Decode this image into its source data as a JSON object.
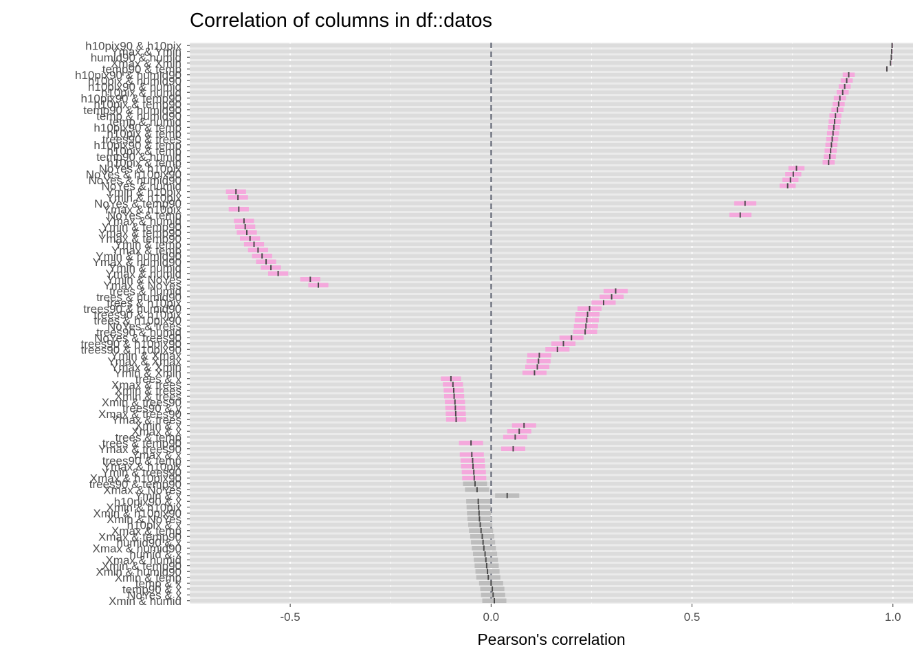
{
  "chart_data": {
    "type": "interval",
    "title": "Correlation of columns in df::datos",
    "xlabel": "Pearson's correlation",
    "ylabel": "",
    "xlim": [
      -0.75,
      1.05
    ],
    "x_ticks": [
      -0.5,
      0.0,
      0.5,
      1.0
    ],
    "x_tick_labels": [
      "-0.5",
      "0.0",
      "0.5",
      "1.0"
    ],
    "reference_line": 0,
    "grid": true,
    "legend": "none",
    "colors": {
      "panel": "#ebebeb",
      "row_band": "#dcdcdc",
      "grid": "#ffffff",
      "significant": "#f4a8dc",
      "not_significant": "#bdbdbd",
      "estimate": "#4a4a4a",
      "zero_line": "#5a5f6e"
    },
    "pairs": [
      {
        "label": "h10pix90 & h10pix",
        "r": 0.998,
        "lo": 0.997,
        "hi": 0.999,
        "sig": true
      },
      {
        "label": "Ymax & Ymin",
        "r": 0.997,
        "lo": 0.996,
        "hi": 0.998,
        "sig": true
      },
      {
        "label": "humid90 & humid",
        "r": 0.996,
        "lo": 0.995,
        "hi": 0.997,
        "sig": true
      },
      {
        "label": "Xmax & Xmin",
        "r": 0.994,
        "lo": 0.993,
        "hi": 0.995,
        "sig": true
      },
      {
        "label": "temp90 & temp",
        "r": 0.985,
        "lo": 0.983,
        "hi": 0.987,
        "sig": true
      },
      {
        "label": "h10pix90 & humid90",
        "r": 0.89,
        "lo": 0.875,
        "hi": 0.905,
        "sig": true
      },
      {
        "label": "h10pix & humid90",
        "r": 0.885,
        "lo": 0.87,
        "hi": 0.9,
        "sig": true
      },
      {
        "label": "h10pix90 & humid",
        "r": 0.88,
        "lo": 0.865,
        "hi": 0.895,
        "sig": true
      },
      {
        "label": "h10pix & humid",
        "r": 0.875,
        "lo": 0.86,
        "hi": 0.89,
        "sig": true
      },
      {
        "label": "h10pix90 & temp90",
        "r": 0.868,
        "lo": 0.853,
        "hi": 0.883,
        "sig": true
      },
      {
        "label": "h10pix & temp90",
        "r": 0.865,
        "lo": 0.85,
        "hi": 0.88,
        "sig": true
      },
      {
        "label": "temp90 & humid90",
        "r": 0.862,
        "lo": 0.847,
        "hi": 0.877,
        "sig": true
      },
      {
        "label": "temp & humid90",
        "r": 0.857,
        "lo": 0.842,
        "hi": 0.872,
        "sig": true
      },
      {
        "label": "temp & humid",
        "r": 0.855,
        "lo": 0.84,
        "hi": 0.87,
        "sig": true
      },
      {
        "label": "h10pix90 & temp",
        "r": 0.853,
        "lo": 0.838,
        "hi": 0.868,
        "sig": true
      },
      {
        "label": "h10pix & temp",
        "r": 0.851,
        "lo": 0.836,
        "hi": 0.866,
        "sig": true
      },
      {
        "label": "trees90 & trees",
        "r": 0.849,
        "lo": 0.834,
        "hi": 0.864,
        "sig": true
      },
      {
        "label": "h10pix90 & temp",
        "r": 0.847,
        "lo": 0.832,
        "hi": 0.862,
        "sig": true
      },
      {
        "label": "h10pix & temp",
        "r": 0.845,
        "lo": 0.83,
        "hi": 0.86,
        "sig": true
      },
      {
        "label": "temp90 & humid",
        "r": 0.843,
        "lo": 0.828,
        "hi": 0.858,
        "sig": true
      },
      {
        "label": "h10pix & temp",
        "r": 0.84,
        "lo": 0.825,
        "hi": 0.855,
        "sig": true
      },
      {
        "label": "NoYes & h10pix",
        "r": 0.76,
        "lo": 0.74,
        "hi": 0.78,
        "sig": true
      },
      {
        "label": "NoYes & h10pix90",
        "r": 0.752,
        "lo": 0.732,
        "hi": 0.772,
        "sig": true
      },
      {
        "label": "NoYes & humid90",
        "r": 0.745,
        "lo": 0.725,
        "hi": 0.765,
        "sig": true
      },
      {
        "label": "NoYes & humid",
        "r": 0.738,
        "lo": 0.718,
        "hi": 0.758,
        "sig": true
      },
      {
        "label": "Ymin & h10pix",
        "r": -0.635,
        "lo": -0.66,
        "hi": -0.61,
        "sig": true
      },
      {
        "label": "Ymin & h10pix",
        "r": -0.63,
        "lo": -0.655,
        "hi": -0.605,
        "sig": true
      },
      {
        "label": "NoYes & temp90",
        "r": 0.632,
        "lo": 0.605,
        "hi": 0.66,
        "sig": true
      },
      {
        "label": "Ymax & h10pix",
        "r": -0.628,
        "lo": -0.653,
        "hi": -0.603,
        "sig": true
      },
      {
        "label": "NoYes & temp",
        "r": 0.62,
        "lo": 0.593,
        "hi": 0.648,
        "sig": true
      },
      {
        "label": "Ymax & humid",
        "r": -0.615,
        "lo": -0.64,
        "hi": -0.59,
        "sig": true
      },
      {
        "label": "Ymin & temp90",
        "r": -0.612,
        "lo": -0.637,
        "hi": -0.587,
        "sig": true
      },
      {
        "label": "Ymax & temp90",
        "r": -0.608,
        "lo": -0.633,
        "hi": -0.583,
        "sig": true
      },
      {
        "label": "Ymax & temp90",
        "r": -0.6,
        "lo": -0.625,
        "hi": -0.575,
        "sig": true
      },
      {
        "label": "Ymin & temp",
        "r": -0.59,
        "lo": -0.615,
        "hi": -0.565,
        "sig": true
      },
      {
        "label": "Ymax & temp",
        "r": -0.58,
        "lo": -0.605,
        "hi": -0.555,
        "sig": true
      },
      {
        "label": "Ymin & humid90",
        "r": -0.57,
        "lo": -0.595,
        "hi": -0.545,
        "sig": true
      },
      {
        "label": "Ymax & humid90",
        "r": -0.56,
        "lo": -0.585,
        "hi": -0.535,
        "sig": true
      },
      {
        "label": "Ymin & humid",
        "r": -0.548,
        "lo": -0.573,
        "hi": -0.523,
        "sig": true
      },
      {
        "label": "Ymax & humid",
        "r": -0.53,
        "lo": -0.555,
        "hi": -0.505,
        "sig": true
      },
      {
        "label": "Ymin & NoYes",
        "r": -0.45,
        "lo": -0.475,
        "hi": -0.425,
        "sig": true
      },
      {
        "label": "Ymax & NoYes",
        "r": -0.43,
        "lo": -0.455,
        "hi": -0.405,
        "sig": true
      },
      {
        "label": "trees & humid",
        "r": 0.31,
        "lo": 0.28,
        "hi": 0.34,
        "sig": true
      },
      {
        "label": "trees & humid90",
        "r": 0.3,
        "lo": 0.27,
        "hi": 0.33,
        "sig": true
      },
      {
        "label": "trees & h10pix",
        "r": 0.28,
        "lo": 0.25,
        "hi": 0.31,
        "sig": true
      },
      {
        "label": "trees90 & humid90",
        "r": 0.245,
        "lo": 0.215,
        "hi": 0.275,
        "sig": true
      },
      {
        "label": "trees90 & h10pix",
        "r": 0.24,
        "lo": 0.21,
        "hi": 0.27,
        "sig": true
      },
      {
        "label": "trees & h10pix90",
        "r": 0.238,
        "lo": 0.208,
        "hi": 0.268,
        "sig": true
      },
      {
        "label": "NoYes & trees",
        "r": 0.236,
        "lo": 0.206,
        "hi": 0.266,
        "sig": true
      },
      {
        "label": "trees90 & humid",
        "r": 0.234,
        "lo": 0.204,
        "hi": 0.264,
        "sig": true
      },
      {
        "label": "NoYes & trees90",
        "r": 0.2,
        "lo": 0.17,
        "hi": 0.23,
        "sig": true
      },
      {
        "label": "trees90 & h10pix90",
        "r": 0.18,
        "lo": 0.15,
        "hi": 0.21,
        "sig": true
      },
      {
        "label": "trees90 & h10pix90",
        "r": 0.165,
        "lo": 0.135,
        "hi": 0.195,
        "sig": true
      },
      {
        "label": "Ymin & Xmax",
        "r": 0.12,
        "lo": 0.09,
        "hi": 0.15,
        "sig": true
      },
      {
        "label": "Ymax & Xmax",
        "r": 0.118,
        "lo": 0.088,
        "hi": 0.148,
        "sig": true
      },
      {
        "label": "Ymax & Xmin",
        "r": 0.115,
        "lo": 0.085,
        "hi": 0.145,
        "sig": true
      },
      {
        "label": "Ymin & Xmin",
        "r": 0.108,
        "lo": 0.078,
        "hi": 0.138,
        "sig": true
      },
      {
        "label": "trees & x",
        "r": -0.1,
        "lo": -0.125,
        "hi": -0.075,
        "sig": true
      },
      {
        "label": "Xmax & trees",
        "r": -0.095,
        "lo": -0.12,
        "hi": -0.07,
        "sig": true
      },
      {
        "label": "Xmin & trees",
        "r": -0.093,
        "lo": -0.118,
        "hi": -0.068,
        "sig": true
      },
      {
        "label": "Xmin & trees",
        "r": -0.092,
        "lo": -0.117,
        "hi": -0.067,
        "sig": true
      },
      {
        "label": "Xmin & trees90",
        "r": -0.09,
        "lo": -0.115,
        "hi": -0.065,
        "sig": true
      },
      {
        "label": "trees90 & y",
        "r": -0.089,
        "lo": -0.114,
        "hi": -0.064,
        "sig": true
      },
      {
        "label": "Xmax & trees90",
        "r": -0.088,
        "lo": -0.113,
        "hi": -0.063,
        "sig": true
      },
      {
        "label": "Ymax & trees",
        "r": -0.087,
        "lo": -0.112,
        "hi": -0.062,
        "sig": true
      },
      {
        "label": "Xmin & x",
        "r": 0.082,
        "lo": 0.052,
        "hi": 0.112,
        "sig": true
      },
      {
        "label": "Xmax & x",
        "r": 0.07,
        "lo": 0.04,
        "hi": 0.1,
        "sig": true
      },
      {
        "label": "trees & temp",
        "r": 0.06,
        "lo": 0.03,
        "hi": 0.09,
        "sig": true
      },
      {
        "label": "trees & temp90",
        "r": -0.05,
        "lo": -0.08,
        "hi": -0.02,
        "sig": true
      },
      {
        "label": "Ymax & trees90",
        "r": 0.055,
        "lo": 0.025,
        "hi": 0.085,
        "sig": true
      },
      {
        "label": "Ymax & x",
        "r": -0.048,
        "lo": -0.078,
        "hi": -0.018,
        "sig": true
      },
      {
        "label": "trees90 & temp",
        "r": -0.046,
        "lo": -0.076,
        "hi": -0.016,
        "sig": true
      },
      {
        "label": "Ymax & h10pix",
        "r": -0.045,
        "lo": -0.075,
        "hi": -0.015,
        "sig": true
      },
      {
        "label": "Ymin & trees90",
        "r": -0.043,
        "lo": -0.073,
        "hi": -0.013,
        "sig": true
      },
      {
        "label": "Xmax & h10pix90",
        "r": -0.042,
        "lo": -0.072,
        "hi": -0.012,
        "sig": true
      },
      {
        "label": "trees90 & temp90",
        "r": -0.04,
        "lo": -0.07,
        "hi": -0.01,
        "sig": false
      },
      {
        "label": "Xmax & NoYes",
        "r": -0.035,
        "lo": -0.065,
        "hi": -0.005,
        "sig": false
      },
      {
        "label": "Ymin & x",
        "r": 0.04,
        "lo": 0.01,
        "hi": 0.07,
        "sig": false
      },
      {
        "label": "h10pix90 & x",
        "r": -0.032,
        "lo": -0.062,
        "hi": -0.002,
        "sig": false
      },
      {
        "label": "Xmin & h10pix",
        "r": -0.031,
        "lo": -0.061,
        "hi": -0.001,
        "sig": false
      },
      {
        "label": "Xmin & h10pix90",
        "r": -0.03,
        "lo": -0.06,
        "hi": 0.0,
        "sig": false
      },
      {
        "label": "Xmin & NoYes",
        "r": -0.029,
        "lo": -0.059,
        "hi": 0.001,
        "sig": false
      },
      {
        "label": "h10pix & x",
        "r": -0.027,
        "lo": -0.057,
        "hi": 0.003,
        "sig": false
      },
      {
        "label": "Xmax & temp",
        "r": -0.025,
        "lo": -0.055,
        "hi": 0.005,
        "sig": false
      },
      {
        "label": "Xmax & temp90",
        "r": -0.022,
        "lo": -0.052,
        "hi": 0.008,
        "sig": false
      },
      {
        "label": "humid90 & x",
        "r": -0.02,
        "lo": -0.05,
        "hi": 0.01,
        "sig": false
      },
      {
        "label": "Xmax & humid90",
        "r": -0.018,
        "lo": -0.048,
        "hi": 0.012,
        "sig": false
      },
      {
        "label": "humid & x",
        "r": -0.015,
        "lo": -0.045,
        "hi": 0.015,
        "sig": false
      },
      {
        "label": "Xmax & humid",
        "r": -0.013,
        "lo": -0.043,
        "hi": 0.017,
        "sig": false
      },
      {
        "label": "Xmin & temp90",
        "r": -0.011,
        "lo": -0.041,
        "hi": 0.019,
        "sig": false
      },
      {
        "label": "Xmin & humid90",
        "r": -0.009,
        "lo": -0.039,
        "hi": 0.021,
        "sig": false
      },
      {
        "label": "Xmin & temp",
        "r": -0.007,
        "lo": -0.037,
        "hi": 0.023,
        "sig": false
      },
      {
        "label": "temp & x",
        "r": 0.0,
        "lo": -0.03,
        "hi": 0.03,
        "sig": false
      },
      {
        "label": "temp90 & x",
        "r": 0.003,
        "lo": -0.027,
        "hi": 0.033,
        "sig": false
      },
      {
        "label": "NoYes & x",
        "r": 0.005,
        "lo": -0.025,
        "hi": 0.035,
        "sig": false
      },
      {
        "label": "Xmin & humid",
        "r": 0.008,
        "lo": -0.022,
        "hi": 0.038,
        "sig": false
      }
    ]
  }
}
